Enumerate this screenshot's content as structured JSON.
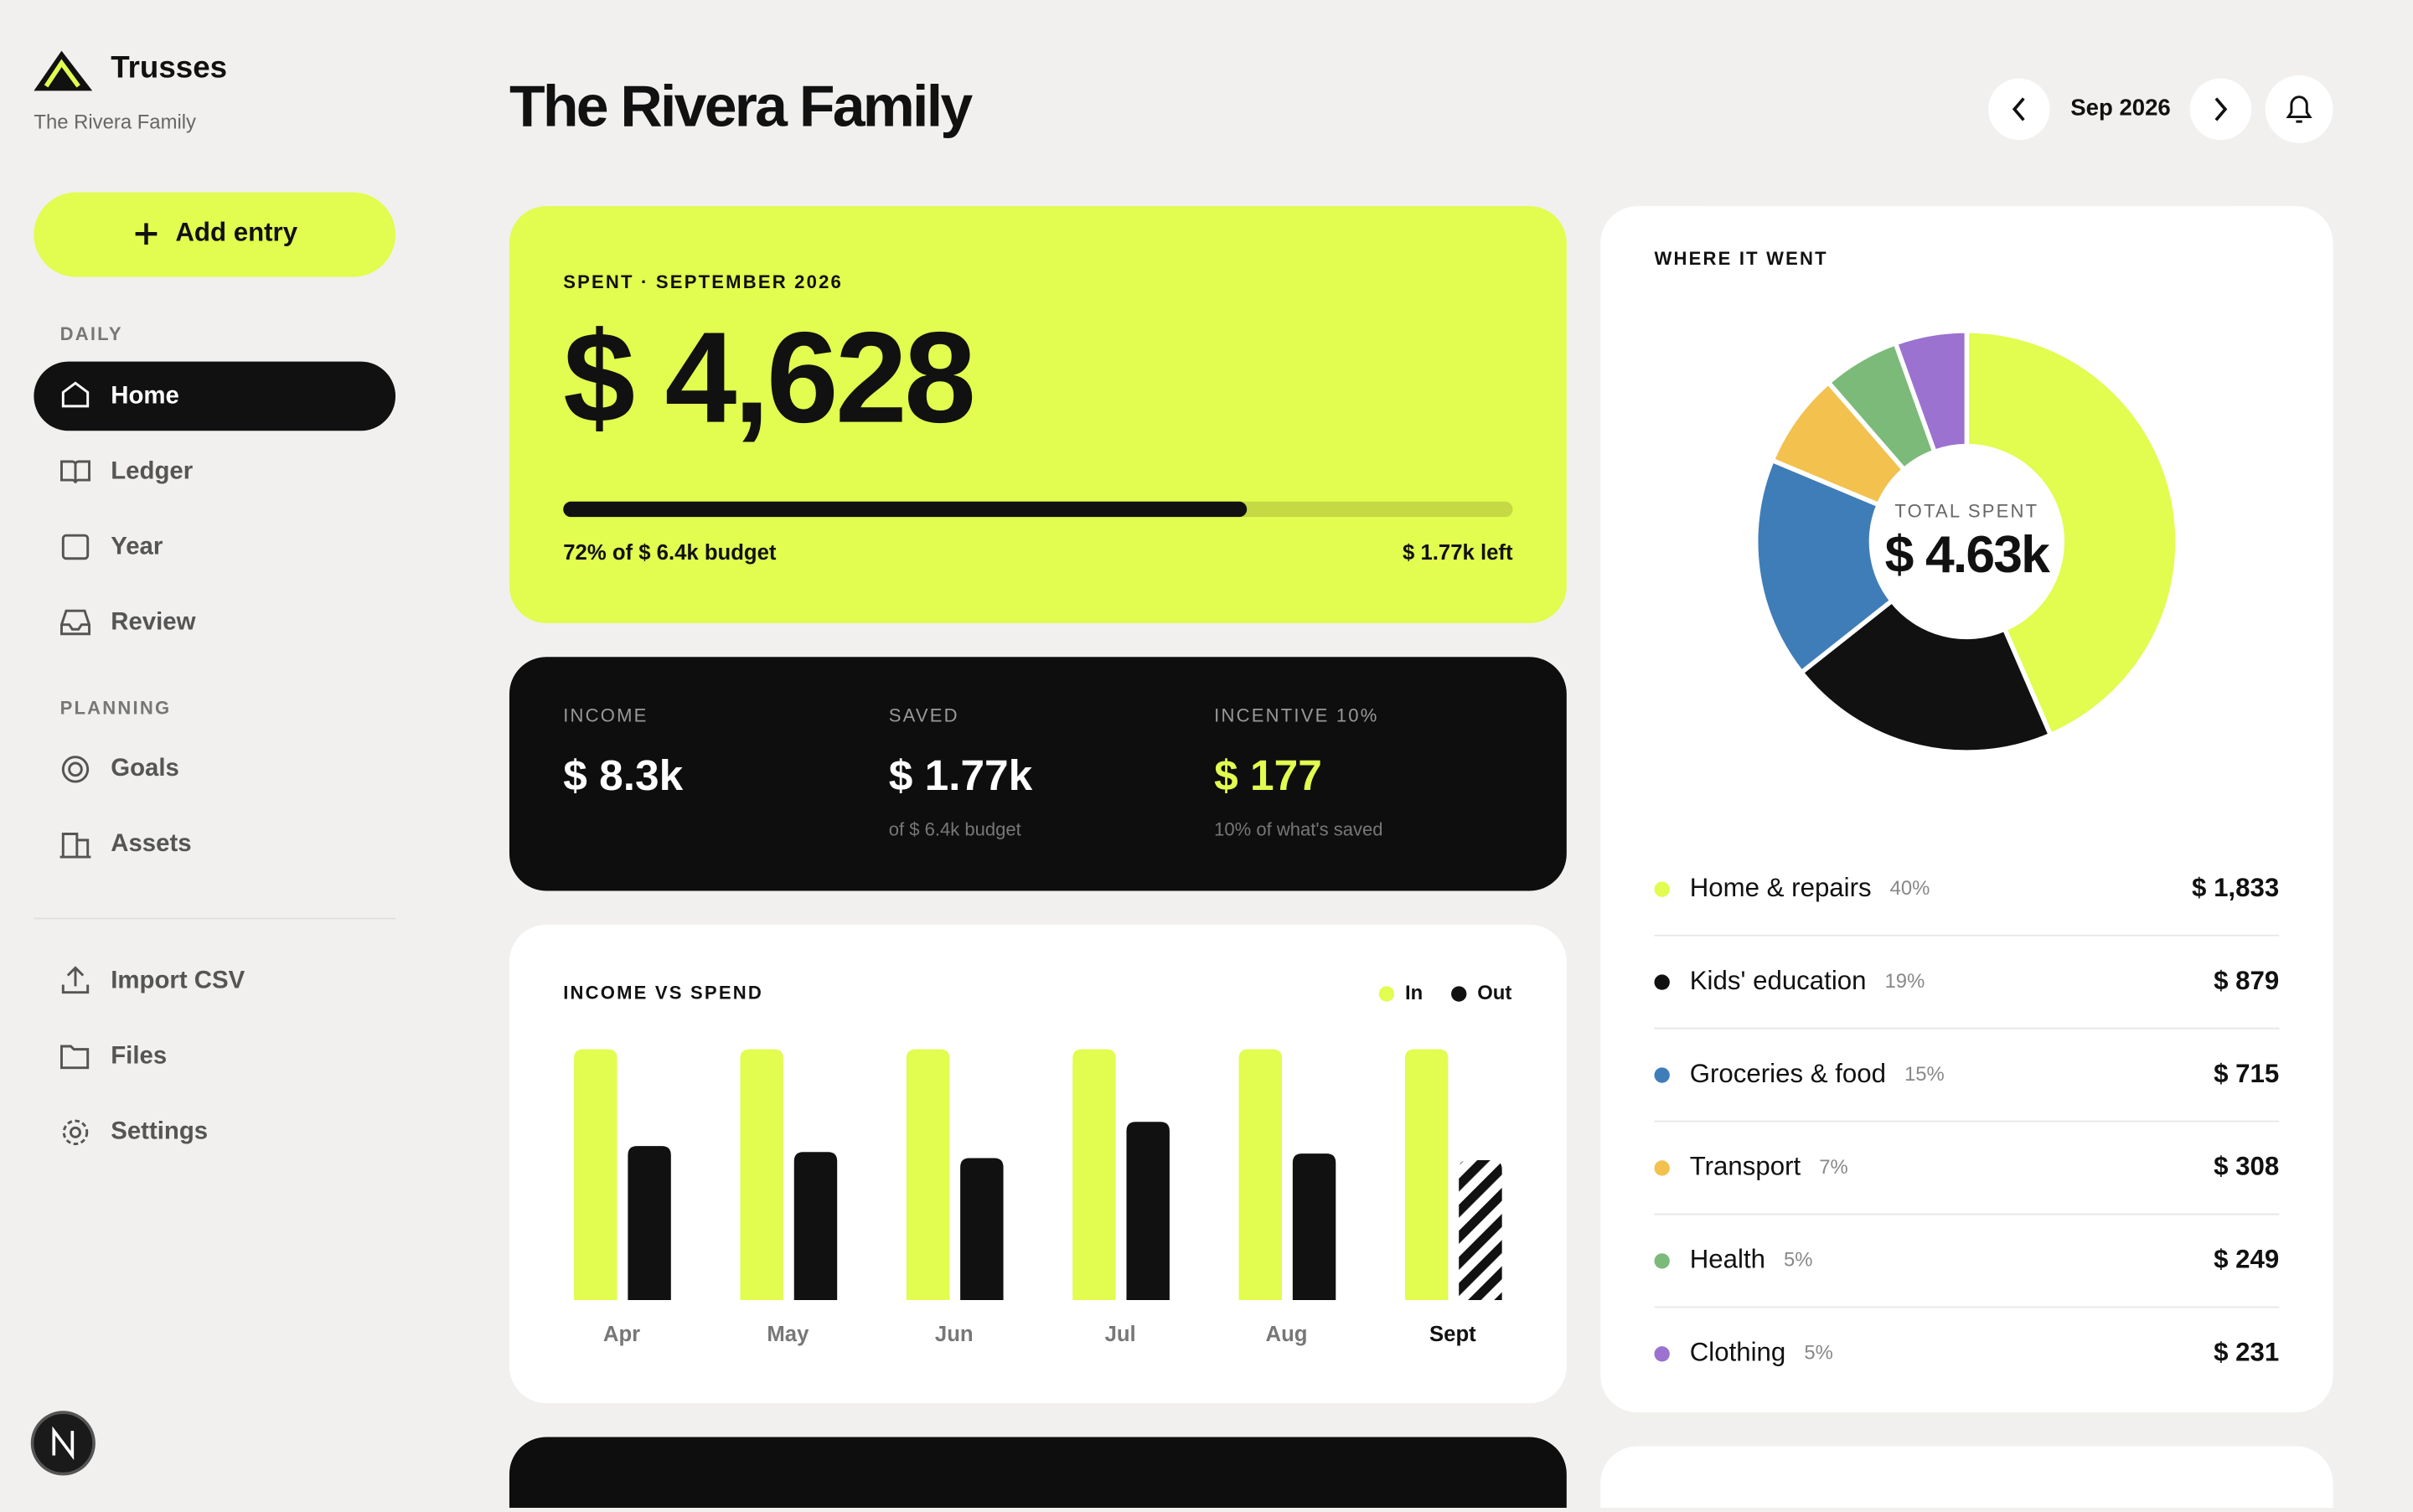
{
  "app": {
    "name": "Trusses",
    "subtitle": "The Rivera Family"
  },
  "add_entry": "Add entry",
  "nav": {
    "sections": [
      {
        "label": "DAILY",
        "items": [
          "Home",
          "Ledger",
          "Year",
          "Review"
        ]
      },
      {
        "label": "PLANNING",
        "items": [
          "Goals",
          "Assets"
        ]
      }
    ],
    "bottom": [
      "Import CSV",
      "Files",
      "Settings"
    ]
  },
  "header": {
    "title": "The Rivera Family",
    "month": "Sep 2026"
  },
  "spent": {
    "label": "SPENT · SEPTEMBER 2026",
    "amount": "$ 4,628",
    "progress": 72,
    "budget_note": "72% of $ 6.4k budget",
    "left": "$ 1.77k left"
  },
  "stats": [
    {
      "label": "INCOME",
      "value": "$ 8.3k"
    },
    {
      "label": "SAVED",
      "value": "$ 1.77k",
      "note": "of $ 6.4k budget"
    },
    {
      "label": "INCENTIVE 10%",
      "value": "$ 177",
      "note": "10% of what's saved"
    }
  ],
  "chart_data": [
    {
      "type": "bar",
      "title": "INCOME VS SPEND",
      "categories": [
        "Apr",
        "May",
        "Jun",
        "Jul",
        "Aug",
        "Sept"
      ],
      "ylim": [
        0,
        8.3
      ],
      "current_index": 5,
      "series": [
        {
          "name": "In",
          "color": "#e2fc4f",
          "values": [
            8.3,
            8.3,
            8.3,
            8.3,
            8.3,
            8.3
          ]
        },
        {
          "name": "Out",
          "color": "#111111",
          "values": [
            5.1,
            4.9,
            4.7,
            5.9,
            4.85,
            4.63
          ]
        }
      ]
    },
    {
      "type": "pie",
      "title": "WHERE IT WENT",
      "center_label": "TOTAL SPENT",
      "center_value": "$ 4.63k",
      "categories": [
        "Home & repairs",
        "Kids' education",
        "Groceries & food",
        "Transport",
        "Health",
        "Clothing"
      ],
      "percents": [
        "40%",
        "19%",
        "15%",
        "7%",
        "5%",
        "5%"
      ],
      "values": [
        1833,
        879,
        715,
        308,
        249,
        231
      ],
      "value_labels": [
        "$ 1,833",
        "$ 879",
        "$ 715",
        "$ 308",
        "$ 249",
        "$ 231"
      ],
      "colors": [
        "#e2fc4f",
        "#111111",
        "#3f7db8",
        "#f2c14e",
        "#7cba7a",
        "#9b72cf"
      ]
    }
  ]
}
